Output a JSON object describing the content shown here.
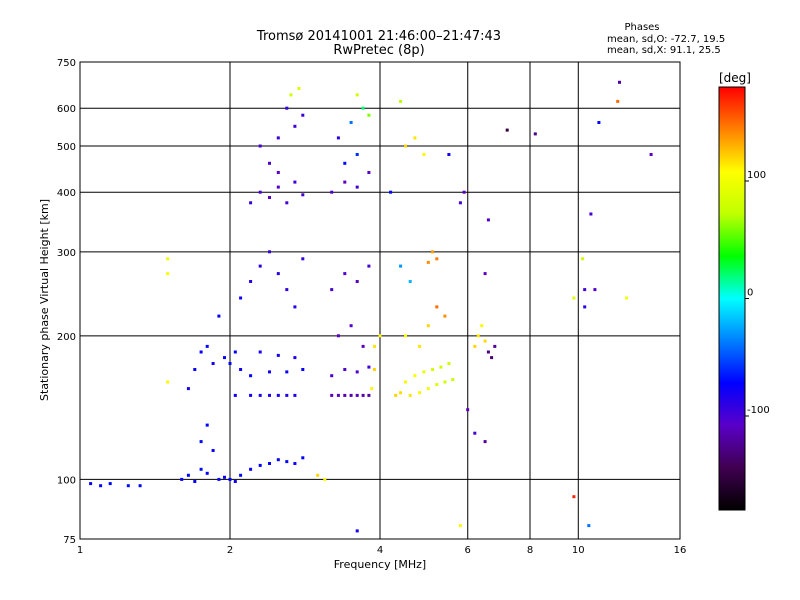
{
  "chart_data": {
    "type": "scatter",
    "title": "Tromsø 20141001 21:46:00–21:47:43",
    "subtitle": "RwPretec (8p)",
    "phases": {
      "heading": "Phases",
      "line_o": "mean, sd,O: -72.7, 19.5",
      "line_x": "mean, sd,X: 91.1, 25.5"
    },
    "xlabel": "Frequency [MHz]",
    "ylabel": "Stationary phase Virtual Height [km]",
    "x_scale": "log",
    "y_scale": "log",
    "xlim": [
      1,
      16
    ],
    "ylim": [
      75,
      750
    ],
    "x_ticks": [
      1,
      2,
      4,
      6,
      8,
      10,
      16
    ],
    "y_ticks": [
      75,
      100,
      200,
      300,
      400,
      500,
      600,
      750
    ],
    "grid": true,
    "colorbar": {
      "label": "[deg]",
      "range": [
        -180,
        180
      ],
      "ticks": [
        100,
        0,
        -100
      ],
      "colors": [
        "#000000",
        "#400050",
        "#5a00c8",
        "#0000ff",
        "#0080ff",
        "#00ffff",
        "#00ff00",
        "#c0ff00",
        "#ffff00",
        "#ff8000",
        "#ff0000"
      ]
    },
    "series": [
      {
        "points": [
          [
            1.05,
            98,
            -75
          ],
          [
            1.1,
            97,
            -70
          ],
          [
            1.15,
            98,
            -72
          ],
          [
            1.25,
            97,
            -68
          ],
          [
            1.32,
            97,
            -70
          ],
          [
            1.5,
            160,
            110
          ],
          [
            1.5,
            270,
            105
          ],
          [
            1.5,
            290,
            100
          ],
          [
            1.6,
            100,
            -72
          ],
          [
            1.65,
            102,
            -70
          ],
          [
            1.7,
            99,
            -75
          ],
          [
            1.75,
            105,
            -68
          ],
          [
            1.8,
            103,
            -72
          ],
          [
            1.65,
            155,
            -80
          ],
          [
            1.7,
            170,
            -75
          ],
          [
            1.75,
            185,
            -72
          ],
          [
            1.8,
            190,
            -70
          ],
          [
            1.85,
            175,
            -78
          ],
          [
            1.75,
            120,
            -70
          ],
          [
            1.8,
            130,
            -72
          ],
          [
            1.85,
            115,
            -74
          ],
          [
            1.9,
            100,
            -70
          ],
          [
            1.95,
            101,
            -76
          ],
          [
            2.0,
            100,
            -72
          ],
          [
            2.05,
            99,
            -78
          ],
          [
            2.1,
            102,
            -70
          ],
          [
            1.95,
            180,
            -75
          ],
          [
            2.0,
            175,
            -70
          ],
          [
            2.05,
            185,
            -72
          ],
          [
            2.1,
            170,
            -78
          ],
          [
            1.9,
            220,
            -74
          ],
          [
            2.1,
            240,
            -78
          ],
          [
            2.05,
            150,
            -76
          ],
          [
            2.2,
            105,
            -76
          ],
          [
            2.3,
            107,
            -72
          ],
          [
            2.4,
            108,
            -75
          ],
          [
            2.5,
            110,
            -74
          ],
          [
            2.6,
            109,
            -70
          ],
          [
            2.7,
            108,
            -78
          ],
          [
            2.8,
            111,
            -72
          ],
          [
            2.2,
            150,
            -80
          ],
          [
            2.3,
            150,
            -82
          ],
          [
            2.4,
            150,
            -85
          ],
          [
            2.5,
            150,
            -80
          ],
          [
            2.6,
            150,
            -84
          ],
          [
            2.7,
            150,
            -82
          ],
          [
            2.2,
            165,
            -75
          ],
          [
            2.4,
            168,
            -78
          ],
          [
            2.6,
            168,
            -76
          ],
          [
            2.8,
            170,
            -74
          ],
          [
            2.3,
            185,
            -80
          ],
          [
            2.5,
            182,
            -78
          ],
          [
            2.7,
            180,
            -82
          ],
          [
            2.2,
            260,
            -85
          ],
          [
            2.3,
            280,
            -90
          ],
          [
            2.4,
            300,
            -95
          ],
          [
            2.5,
            270,
            -88
          ],
          [
            2.6,
            250,
            -92
          ],
          [
            2.7,
            230,
            -86
          ],
          [
            2.8,
            290,
            -94
          ],
          [
            2.2,
            380,
            -95
          ],
          [
            2.3,
            400,
            -100
          ],
          [
            2.4,
            390,
            -110
          ],
          [
            2.5,
            410,
            -105
          ],
          [
            2.6,
            380,
            -100
          ],
          [
            2.7,
            420,
            -98
          ],
          [
            2.8,
            395,
            -102
          ],
          [
            2.5,
            440,
            -108
          ],
          [
            2.4,
            460,
            -104
          ],
          [
            2.3,
            500,
            -100
          ],
          [
            2.5,
            520,
            -95
          ],
          [
            2.7,
            550,
            -98
          ],
          [
            2.6,
            600,
            -92
          ],
          [
            2.8,
            580,
            -96
          ],
          [
            2.65,
            640,
            80
          ],
          [
            2.75,
            660,
            90
          ],
          [
            3.0,
            102,
            120
          ],
          [
            3.1,
            100,
            110
          ],
          [
            3.2,
            150,
            -110
          ],
          [
            3.4,
            150,
            -115
          ],
          [
            3.6,
            150,
            -112
          ],
          [
            3.8,
            150,
            -118
          ],
          [
            3.3,
            150,
            -108
          ],
          [
            3.5,
            150,
            -116
          ],
          [
            3.7,
            150,
            -114
          ],
          [
            3.2,
            165,
            -100
          ],
          [
            3.4,
            170,
            -105
          ],
          [
            3.6,
            168,
            -102
          ],
          [
            3.8,
            172,
            -98
          ],
          [
            3.3,
            200,
            -110
          ],
          [
            3.5,
            210,
            -108
          ],
          [
            3.7,
            190,
            -112
          ],
          [
            3.2,
            250,
            -100
          ],
          [
            3.4,
            270,
            -105
          ],
          [
            3.6,
            260,
            -110
          ],
          [
            3.8,
            280,
            -102
          ],
          [
            3.2,
            400,
            -105
          ],
          [
            3.4,
            420,
            -110
          ],
          [
            3.6,
            410,
            -100
          ],
          [
            3.8,
            440,
            -108
          ],
          [
            3.3,
            520,
            -90
          ],
          [
            3.5,
            560,
            -40
          ],
          [
            3.7,
            600,
            20
          ],
          [
            3.8,
            580,
            60
          ],
          [
            3.6,
            640,
            80
          ],
          [
            3.4,
            460,
            -70
          ],
          [
            3.6,
            480,
            -60
          ],
          [
            3.85,
            155,
            110
          ],
          [
            3.9,
            170,
            120
          ],
          [
            3.9,
            190,
            115
          ],
          [
            4.0,
            200,
            110
          ],
          [
            4.3,
            150,
            120
          ],
          [
            4.4,
            152,
            118
          ],
          [
            4.6,
            150,
            115
          ],
          [
            4.8,
            152,
            110
          ],
          [
            5.0,
            155,
            100
          ],
          [
            5.2,
            158,
            90
          ],
          [
            5.4,
            160,
            80
          ],
          [
            5.6,
            162,
            75
          ],
          [
            4.5,
            160,
            110
          ],
          [
            4.7,
            165,
            105
          ],
          [
            4.9,
            168,
            95
          ],
          [
            5.1,
            170,
            85
          ],
          [
            5.3,
            172,
            80
          ],
          [
            5.5,
            175,
            78
          ],
          [
            4.5,
            200,
            110
          ],
          [
            4.8,
            190,
            115
          ],
          [
            5.0,
            210,
            120
          ],
          [
            4.4,
            280,
            -30
          ],
          [
            4.6,
            260,
            -20
          ],
          [
            5.0,
            285,
            140
          ],
          [
            5.1,
            300,
            135
          ],
          [
            5.2,
            290,
            145
          ],
          [
            5.2,
            230,
            150
          ],
          [
            5.4,
            220,
            140
          ],
          [
            4.5,
            500,
            120
          ],
          [
            4.7,
            520,
            115
          ],
          [
            4.9,
            480,
            110
          ],
          [
            4.2,
            400,
            -70
          ],
          [
            4.4,
            620,
            70
          ],
          [
            5.5,
            480,
            -80
          ],
          [
            5.8,
            380,
            -100
          ],
          [
            5.9,
            400,
            -110
          ],
          [
            6.2,
            190,
            120
          ],
          [
            6.3,
            200,
            115
          ],
          [
            6.4,
            210,
            110
          ],
          [
            6.5,
            195,
            118
          ],
          [
            6.6,
            185,
            -130
          ],
          [
            6.7,
            180,
            -135
          ],
          [
            6.8,
            190,
            -120
          ],
          [
            6.0,
            140,
            -110
          ],
          [
            6.2,
            125,
            -100
          ],
          [
            6.5,
            120,
            -120
          ],
          [
            6.5,
            270,
            -110
          ],
          [
            6.6,
            350,
            -105
          ],
          [
            7.2,
            540,
            -150
          ],
          [
            8.2,
            530,
            -130
          ],
          [
            9.8,
            240,
            90
          ],
          [
            9.8,
            92,
            170
          ],
          [
            10.3,
            230,
            -90
          ],
          [
            10.3,
            250,
            -100
          ],
          [
            10.2,
            290,
            80
          ],
          [
            10.6,
            360,
            -100
          ],
          [
            10.8,
            250,
            -105
          ],
          [
            11.0,
            560,
            -70
          ],
          [
            12.0,
            620,
            150
          ],
          [
            12.1,
            680,
            -120
          ],
          [
            14.0,
            480,
            -110
          ],
          [
            12.5,
            240,
            100
          ],
          [
            5.8,
            80,
            110
          ],
          [
            3.6,
            78,
            -80
          ],
          [
            10.5,
            80,
            -40
          ]
        ]
      }
    ]
  }
}
